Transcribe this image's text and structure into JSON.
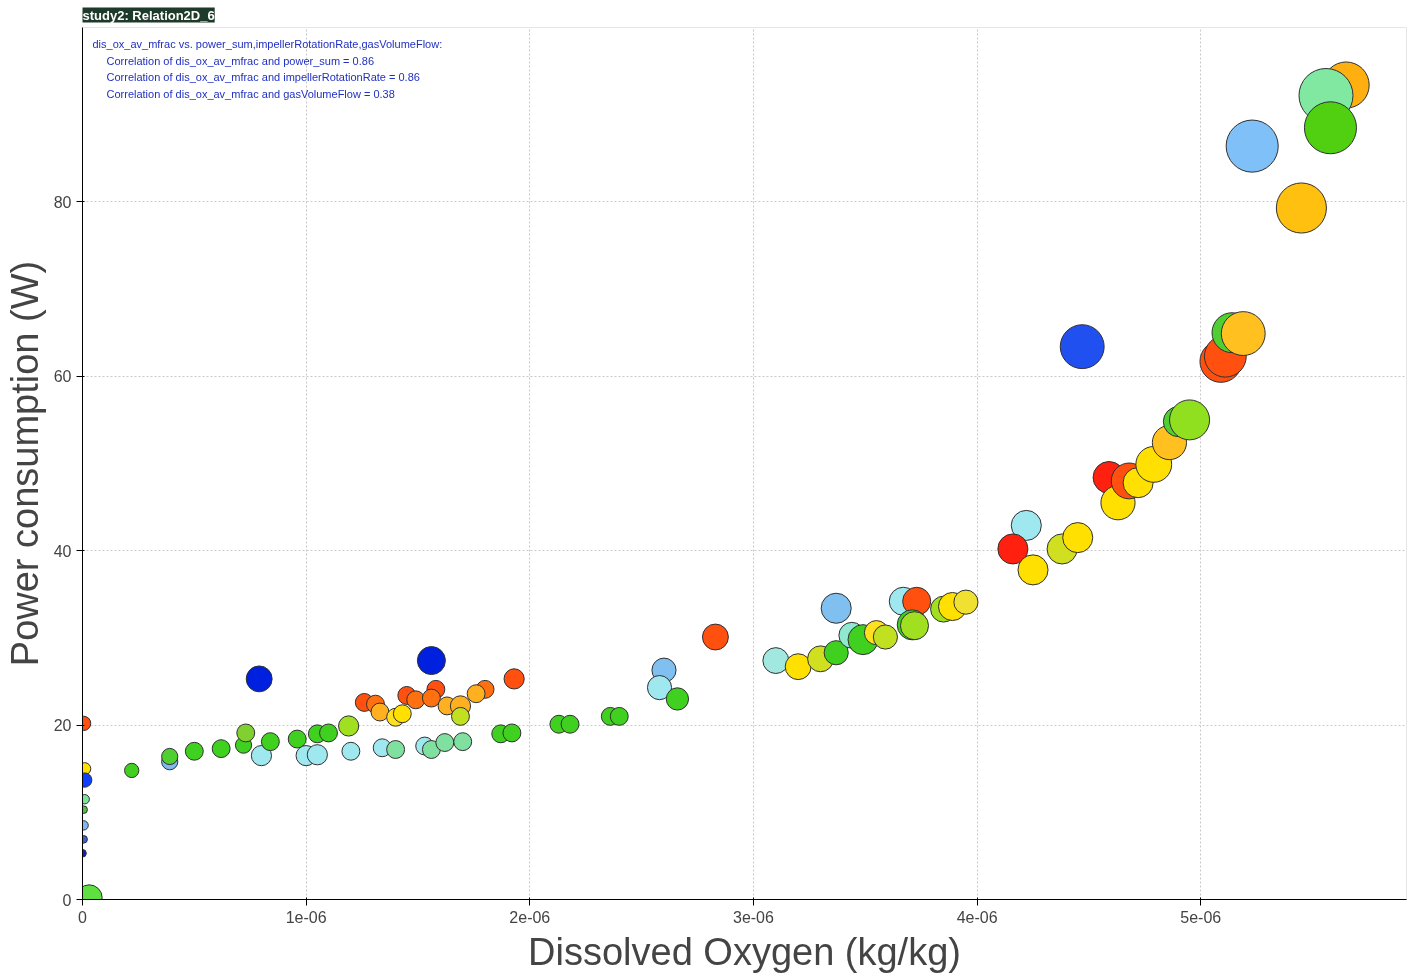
{
  "chart_data": {
    "type": "bubble",
    "title": "study2: Relation2D_6",
    "xlabel": "Dissolved Oxygen (kg/kg)",
    "ylabel": "Power consumption (W)",
    "annotations": [
      "dis_ox_av_mfrac vs. power_sum,impellerRotationRate,gasVolumeFlow:",
      "Correlation of dis_ox_av_mfrac and power_sum = 0.86",
      "Correlation of dis_ox_av_mfrac and impellerRotationRate = 0.86",
      "Correlation of dis_ox_av_mfrac and gasVolumeFlow = 0.38"
    ],
    "xlim": [
      0,
      5.92e-06
    ],
    "ylim": [
      0,
      100
    ],
    "xticks": [
      0,
      {
        "value": 1e-06,
        "label": "1e-06"
      },
      {
        "value": 2e-06,
        "label": "2e-06"
      },
      {
        "value": 3e-06,
        "label": "3e-06"
      },
      {
        "value": 4e-06,
        "label": "4e-06"
      },
      {
        "value": 5e-06,
        "label": "5e-06"
      }
    ],
    "yticks": [
      0,
      20,
      40,
      60,
      80
    ],
    "grid": true,
    "marker": "circle",
    "x": [
      5e-09,
      1e-08,
      1e-08,
      1e-08,
      5e-09,
      5e-09,
      5e-09,
      0.0,
      3e-08,
      2.2e-07,
      3.9e-07,
      3.9e-07,
      5e-07,
      6.2e-07,
      7.2e-07,
      7.3e-07,
      8e-07,
      7.9e-07,
      8.4e-07,
      9.6e-07,
      1e-06,
      1.05e-06,
      1.05e-06,
      1.1e-06,
      1.19e-06,
      1.2e-06,
      1.26e-06,
      1.31e-06,
      1.33e-06,
      1.34e-06,
      1.4e-06,
      1.4e-06,
      1.43e-06,
      1.45e-06,
      1.49e-06,
      1.53e-06,
      1.56e-06,
      1.56e-06,
      1.58e-06,
      1.56e-06,
      1.62e-06,
      1.7e-06,
      1.63e-06,
      1.69e-06,
      1.69e-06,
      1.8e-06,
      1.76e-06,
      1.87e-06,
      1.92e-06,
      1.93e-06,
      2.13e-06,
      2.18e-06,
      2.36e-06,
      2.4e-06,
      2.6e-06,
      2.58e-06,
      2.66e-06,
      2.83e-06,
      3.1e-06,
      3.2e-06,
      3.3e-06,
      3.37e-06,
      3.37e-06,
      3.44e-06,
      3.49e-06,
      3.55e-06,
      3.59e-06,
      3.67e-06,
      3.73e-06,
      3.71e-06,
      3.72e-06,
      3.85e-06,
      3.89e-06,
      3.95e-06,
      4.22e-06,
      4.16e-06,
      4.25e-06,
      4.38e-06,
      4.45e-06,
      4.47e-06,
      4.59e-06,
      4.63e-06,
      4.68e-06,
      4.72e-06,
      4.79e-06,
      4.86e-06,
      4.9e-06,
      4.95e-06,
      5.09e-06,
      5.11e-06,
      5.14e-06,
      5.19e-06,
      5.23e-06,
      5.45e-06,
      5.65e-06,
      5.56e-06,
      5.58e-06
    ],
    "values": [
      20.2,
      15.0,
      13.7,
      11.5,
      10.3,
      8.5,
      6.9,
      5.3,
      0.2,
      14.8,
      15.8,
      16.4,
      17.0,
      17.3,
      17.7,
      19.1,
      16.5,
      25.3,
      18.1,
      18.4,
      16.5,
      16.6,
      19.0,
      19.1,
      19.9,
      17.0,
      22.6,
      22.4,
      21.5,
      17.4,
      17.2,
      20.9,
      21.3,
      23.4,
      22.9,
      17.6,
      17.2,
      27.4,
      24.1,
      23.1,
      18.0,
      18.1,
      22.2,
      22.2,
      21.0,
      24.1,
      23.6,
      19.0,
      19.1,
      25.3,
      20.1,
      20.1,
      21.0,
      21.0,
      26.3,
      24.3,
      23.0,
      30.1,
      27.4,
      26.7,
      27.6,
      28.3,
      33.4,
      30.3,
      29.8,
      30.6,
      30.1,
      34.2,
      34.2,
      31.5,
      31.4,
      33.3,
      33.6,
      34.1,
      42.9,
      40.2,
      37.8,
      40.2,
      41.5,
      63.4,
      48.4,
      45.5,
      48.0,
      47.8,
      49.9,
      52.4,
      54.8,
      55.0,
      61.7,
      62.3,
      65.0,
      64.9,
      86.4,
      79.3,
      93.4,
      92.2,
      88.5
    ],
    "sizes": [
      0.07,
      0.05,
      0.07,
      0.03,
      0.02,
      0.03,
      0.02,
      0.02,
      0.23,
      0.07,
      0.09,
      0.09,
      0.11,
      0.11,
      0.09,
      0.11,
      0.14,
      0.23,
      0.11,
      0.11,
      0.14,
      0.14,
      0.11,
      0.11,
      0.14,
      0.11,
      0.11,
      0.11,
      0.11,
      0.11,
      0.11,
      0.11,
      0.11,
      0.11,
      0.11,
      0.11,
      0.11,
      0.27,
      0.11,
      0.11,
      0.11,
      0.11,
      0.11,
      0.14,
      0.11,
      0.11,
      0.11,
      0.11,
      0.11,
      0.14,
      0.11,
      0.11,
      0.11,
      0.11,
      0.2,
      0.2,
      0.17,
      0.23,
      0.23,
      0.23,
      0.23,
      0.2,
      0.31,
      0.23,
      0.31,
      0.2,
      0.2,
      0.27,
      0.27,
      0.31,
      0.27,
      0.23,
      0.27,
      0.2,
      0.31,
      0.31,
      0.31,
      0.31,
      0.31,
      0.66,
      0.35,
      0.4,
      0.44,
      0.31,
      0.44,
      0.4,
      0.31,
      0.55,
      0.6,
      0.6,
      0.55,
      0.66,
      0.93,
      0.86,
      0.73,
      1,
      0.93
    ],
    "colors": [
      "#ff5010",
      "#ffe000",
      "#1040ff",
      "#80e0a0",
      "#50c040",
      "#80b8f0",
      "#4060d0",
      "#1020c0",
      "#60e040",
      "#40d020",
      "#80b8f0",
      "#50d030",
      "#40d020",
      "#40d020",
      "#40d020",
      "#80d030",
      "#a0e8f0",
      "#0020e0",
      "#40d020",
      "#40d020",
      "#a0e8f0",
      "#a0e8f0",
      "#40d020",
      "#40d020",
      "#a0e020",
      "#a0e8f0",
      "#ff5010",
      "#ff7010",
      "#ffb020",
      "#a0e8f0",
      "#80e0a0",
      "#ffe020",
      "#ffe000",
      "#ff5010",
      "#ff7010",
      "#a0e8f0",
      "#80e0a0",
      "#0020e0",
      "#ff5010",
      "#ff7010",
      "#80e0a0",
      "#80e0a0",
      "#ffb020",
      "#ffb020",
      "#c0e020",
      "#ff7010",
      "#ffb020",
      "#40d020",
      "#40d020",
      "#ff5010",
      "#40d020",
      "#40d020",
      "#40d020",
      "#40d020",
      "#80c0f0",
      "#a0e8f0",
      "#40d020",
      "#ff5010",
      "#a0e8e0",
      "#ffe000",
      "#d0e020",
      "#40d020",
      "#80c0f0",
      "#90e8d0",
      "#40d020",
      "#ffe020",
      "#c0e020",
      "#a0e8f0",
      "#ff5010",
      "#40d020",
      "#a0e020",
      "#a0e020",
      "#ffe000",
      "#f0e030",
      "#a0e8f0",
      "#ff2010",
      "#ffe000",
      "#d0e020",
      "#ffe000",
      "#2050f0",
      "#ff2010",
      "#ffe000",
      "#ff5010",
      "#ffe000",
      "#ffe000",
      "#ffc020",
      "#50d030",
      "#90e020",
      "#ff5010",
      "#ff5010",
      "#50d030",
      "#ffc020",
      "#80c0f8",
      "#ffc010",
      "#ffb010",
      "#80e8a0",
      "#50d010"
    ]
  }
}
